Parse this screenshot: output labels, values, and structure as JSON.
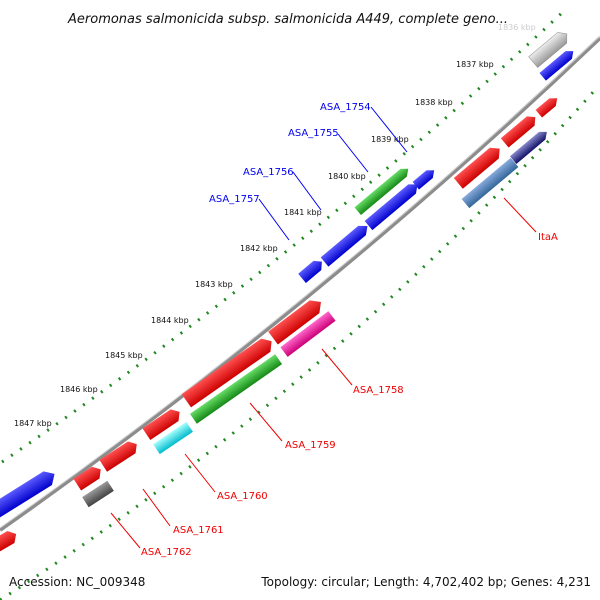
{
  "title": "Aeromonas salmonicida subsp. salmonicida A449, complete geno...",
  "faded_tick": "1836 kbp",
  "ticks": [
    "1837 kbp",
    "1838 kbp",
    "1839 kbp",
    "1840 kbp",
    "1841 kbp",
    "1842 kbp",
    "1843 kbp",
    "1844 kbp",
    "1845 kbp",
    "1846 kbp",
    "1847 kbp"
  ],
  "labels_upper": [
    "ASA_1754",
    "ASA_1755",
    "ASA_1756",
    "ASA_1757"
  ],
  "labels_lower": [
    "ItaA",
    "ASA_1758",
    "ASA_1759",
    "ASA_1760",
    "ASA_1761",
    "ASA_1762"
  ],
  "footer": {
    "accession": "Accession: NC_009348",
    "summary": "Topology: circular; Length: 4,702,402 bp; Genes: 4,231"
  },
  "colors": {
    "blue": "#0000ee",
    "red": "#ee0000",
    "green": "#22aa22",
    "magenta": "#ee1199",
    "cyan": "#00dddd",
    "gray": "#555555",
    "lightgray": "#bbbbbb",
    "steel": "#4477aa",
    "navy": "#222288",
    "backbone": "#777777",
    "dots": "#228822"
  }
}
